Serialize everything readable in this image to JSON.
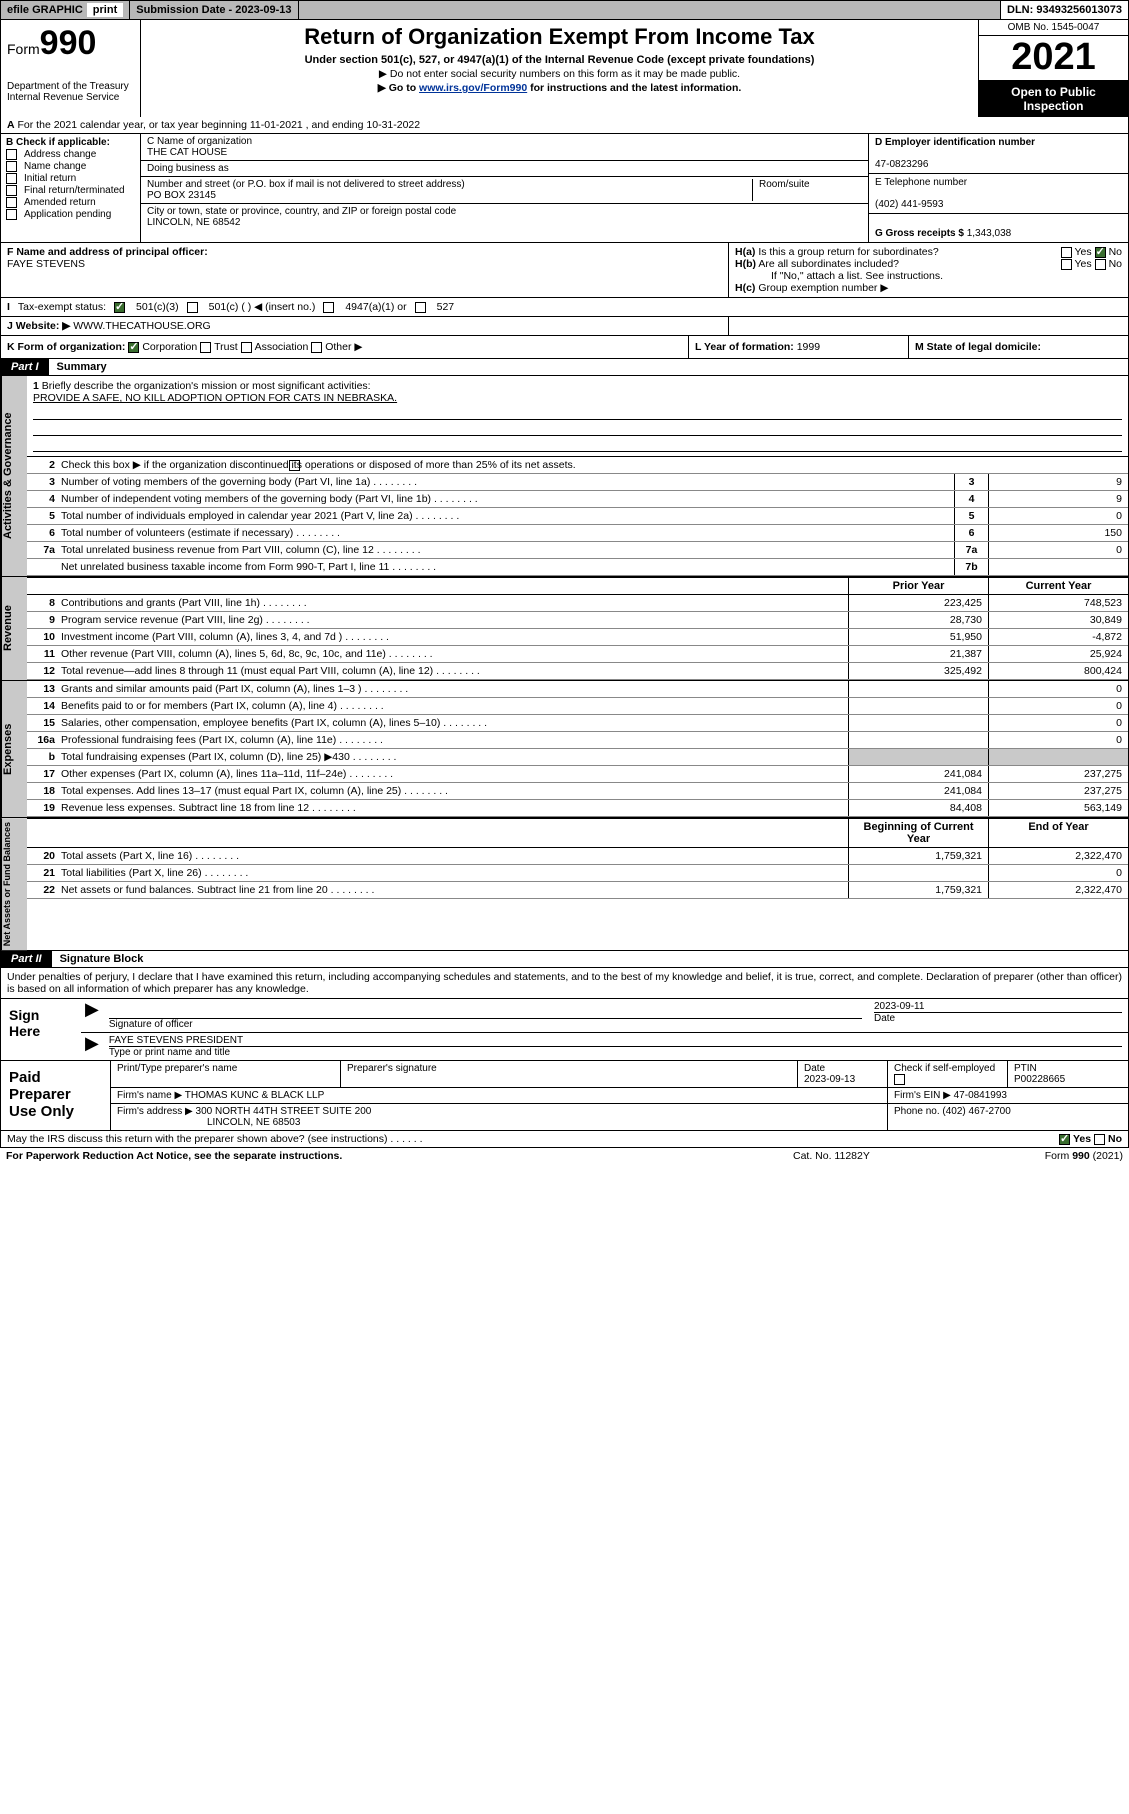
{
  "topbar": {
    "efile": "efile GRAPHIC",
    "print": "print",
    "submission": "Submission Date - 2023-09-13",
    "dln": "DLN: 93493256013073"
  },
  "header": {
    "form": "Form",
    "formNo": "990",
    "dept": "Department of the Treasury",
    "irs": "Internal Revenue Service",
    "title": "Return of Organization Exempt From Income Tax",
    "sub": "Under section 501(c), 527, or 4947(a)(1) of the Internal Revenue Code (except private foundations)",
    "note1": "▶ Do not enter social security numbers on this form as it may be made public.",
    "note2_pre": "▶ Go to ",
    "note2_link": "www.irs.gov/Form990",
    "note2_post": " for instructions and the latest information.",
    "omb": "OMB No. 1545-0047",
    "year": "2021",
    "opi": "Open to Public Inspection"
  },
  "A": "For the 2021 calendar year, or tax year beginning 11-01-2021   , and ending 10-31-2022",
  "B": {
    "label": "B Check if applicable:",
    "items": [
      "Address change",
      "Name change",
      "Initial return",
      "Final return/terminated",
      "Amended return",
      "Application pending"
    ]
  },
  "C": {
    "nameLbl": "C Name of organization",
    "name": "THE CAT HOUSE",
    "dbaLbl": "Doing business as",
    "addrLbl": "Number and street (or P.O. box if mail is not delivered to street address)",
    "roomLbl": "Room/suite",
    "addr": "PO BOX 23145",
    "cityLbl": "City or town, state or province, country, and ZIP or foreign postal code",
    "city": "LINCOLN, NE  68542"
  },
  "D": {
    "lbl": "D Employer identification number",
    "val": "47-0823296"
  },
  "E": {
    "lbl": "E Telephone number",
    "val": "(402) 441-9593"
  },
  "G": {
    "lbl": "G Gross receipts $",
    "val": "1,343,038"
  },
  "F": {
    "lbl": "F  Name and address of principal officer:",
    "val": "FAYE STEVENS"
  },
  "H": {
    "ha": "Is this a group return for subordinates?",
    "hb": "Are all subordinates included?",
    "ifno": "If \"No,\" attach a list. See instructions.",
    "hc": "Group exemption number ▶",
    "yes": "Yes",
    "no": "No"
  },
  "I": {
    "lbl": "Tax-exempt status:",
    "o1": "501(c)(3)",
    "o2": "501(c) (  ) ◀ (insert no.)",
    "o3": "4947(a)(1) or",
    "o4": "527"
  },
  "J": {
    "lbl": "Website: ▶",
    "val": "WWW.THECATHOUSE.ORG"
  },
  "K": {
    "lbl": "K Form of organization:",
    "corp": "Corporation",
    "trust": "Trust",
    "assoc": "Association",
    "other": "Other ▶"
  },
  "L": {
    "lbl": "L Year of formation:",
    "val": "1999"
  },
  "M": {
    "lbl": "M State of legal domicile:",
    "val": ""
  },
  "part1": {
    "tag": "Part I",
    "title": "Summary"
  },
  "brief": {
    "num": "1",
    "lbl": "Briefly describe the organization's mission or most significant activities:",
    "txt": "PROVIDE A SAFE, NO KILL ADOPTION OPTION FOR CATS IN NEBRASKA."
  },
  "l2": "Check this box ▶      if the organization discontinued its operations or disposed of more than 25% of its net assets.",
  "govLines": [
    {
      "n": "3",
      "t": "Number of voting members of the governing body (Part VI, line 1a)",
      "b": "3",
      "v": "9"
    },
    {
      "n": "4",
      "t": "Number of independent voting members of the governing body (Part VI, line 1b)",
      "b": "4",
      "v": "9"
    },
    {
      "n": "5",
      "t": "Total number of individuals employed in calendar year 2021 (Part V, line 2a)",
      "b": "5",
      "v": "0"
    },
    {
      "n": "6",
      "t": "Total number of volunteers (estimate if necessary)",
      "b": "6",
      "v": "150"
    },
    {
      "n": "7a",
      "t": "Total unrelated business revenue from Part VIII, column (C), line 12",
      "b": "7a",
      "v": "0"
    },
    {
      "n": "",
      "t": "Net unrelated business taxable income from Form 990-T, Part I, line 11",
      "b": "7b",
      "v": ""
    }
  ],
  "cols": {
    "py": "Prior Year",
    "cy": "Current Year",
    "boy": "Beginning of Current Year",
    "eoy": "End of Year"
  },
  "rev": [
    {
      "n": "8",
      "t": "Contributions and grants (Part VIII, line 1h)",
      "p": "223,425",
      "c": "748,523"
    },
    {
      "n": "9",
      "t": "Program service revenue (Part VIII, line 2g)",
      "p": "28,730",
      "c": "30,849"
    },
    {
      "n": "10",
      "t": "Investment income (Part VIII, column (A), lines 3, 4, and 7d )",
      "p": "51,950",
      "c": "-4,872"
    },
    {
      "n": "11",
      "t": "Other revenue (Part VIII, column (A), lines 5, 6d, 8c, 9c, 10c, and 11e)",
      "p": "21,387",
      "c": "25,924"
    },
    {
      "n": "12",
      "t": "Total revenue—add lines 8 through 11 (must equal Part VIII, column (A), line 12)",
      "p": "325,492",
      "c": "800,424"
    }
  ],
  "exp": [
    {
      "n": "13",
      "t": "Grants and similar amounts paid (Part IX, column (A), lines 1–3 )",
      "p": "",
      "c": "0"
    },
    {
      "n": "14",
      "t": "Benefits paid to or for members (Part IX, column (A), line 4)",
      "p": "",
      "c": "0"
    },
    {
      "n": "15",
      "t": "Salaries, other compensation, employee benefits (Part IX, column (A), lines 5–10)",
      "p": "",
      "c": "0"
    },
    {
      "n": "16a",
      "t": "Professional fundraising fees (Part IX, column (A), line 11e)",
      "p": "",
      "c": "0"
    },
    {
      "n": "b",
      "t": "Total fundraising expenses (Part IX, column (D), line 25) ▶430",
      "p": "",
      "c": "",
      "shade": true
    },
    {
      "n": "17",
      "t": "Other expenses (Part IX, column (A), lines 11a–11d, 11f–24e)",
      "p": "241,084",
      "c": "237,275"
    },
    {
      "n": "18",
      "t": "Total expenses. Add lines 13–17 (must equal Part IX, column (A), line 25)",
      "p": "241,084",
      "c": "237,275"
    },
    {
      "n": "19",
      "t": "Revenue less expenses. Subtract line 18 from line 12",
      "p": "84,408",
      "c": "563,149"
    }
  ],
  "bal": [
    {
      "n": "20",
      "t": "Total assets (Part X, line 16)",
      "p": "1,759,321",
      "c": "2,322,470"
    },
    {
      "n": "21",
      "t": "Total liabilities (Part X, line 26)",
      "p": "",
      "c": "0"
    },
    {
      "n": "22",
      "t": "Net assets or fund balances. Subtract line 21 from line 20",
      "p": "1,759,321",
      "c": "2,322,470"
    }
  ],
  "vlabels": {
    "gov": "Activities & Governance",
    "rev": "Revenue",
    "exp": "Expenses",
    "bal": "Net Assets or Fund Balances"
  },
  "part2": {
    "tag": "Part II",
    "title": "Signature Block"
  },
  "decl": "Under penalties of perjury, I declare that I have examined this return, including accompanying schedules and statements, and to the best of my knowledge and belief, it is true, correct, and complete. Declaration of preparer (other than officer) is based on all information of which preparer has any knowledge.",
  "sign": {
    "here": "Sign Here",
    "sigOff": "Signature of officer",
    "date": "Date",
    "dateVal": "2023-09-11",
    "name": "FAYE STEVENS  PRESIDENT",
    "nameLbl": "Type or print name and title"
  },
  "prep": {
    "title": "Paid Preparer Use Only",
    "h1": "Print/Type preparer's name",
    "h2": "Preparer's signature",
    "h3": "Date",
    "h3v": "2023-09-13",
    "h4": "Check       if self-employed",
    "h5": "PTIN",
    "h5v": "P00228665",
    "firmLbl": "Firm's name    ▶",
    "firm": "THOMAS KUNC & BLACK LLP",
    "einLbl": "Firm's EIN ▶",
    "ein": "47-0841993",
    "addrLbl": "Firm's address ▶",
    "addr1": "300 NORTH 44TH STREET SUITE 200",
    "addr2": "LINCOLN, NE  68503",
    "phLbl": "Phone no.",
    "ph": "(402) 467-2700"
  },
  "footer": {
    "may": "May the IRS discuss this return with the preparer shown above? (see instructions)",
    "yes": "Yes",
    "no": "No",
    "pra": "For Paperwork Reduction Act Notice, see the separate instructions.",
    "cat": "Cat. No. 11282Y",
    "form": "Form 990 (2021)"
  }
}
